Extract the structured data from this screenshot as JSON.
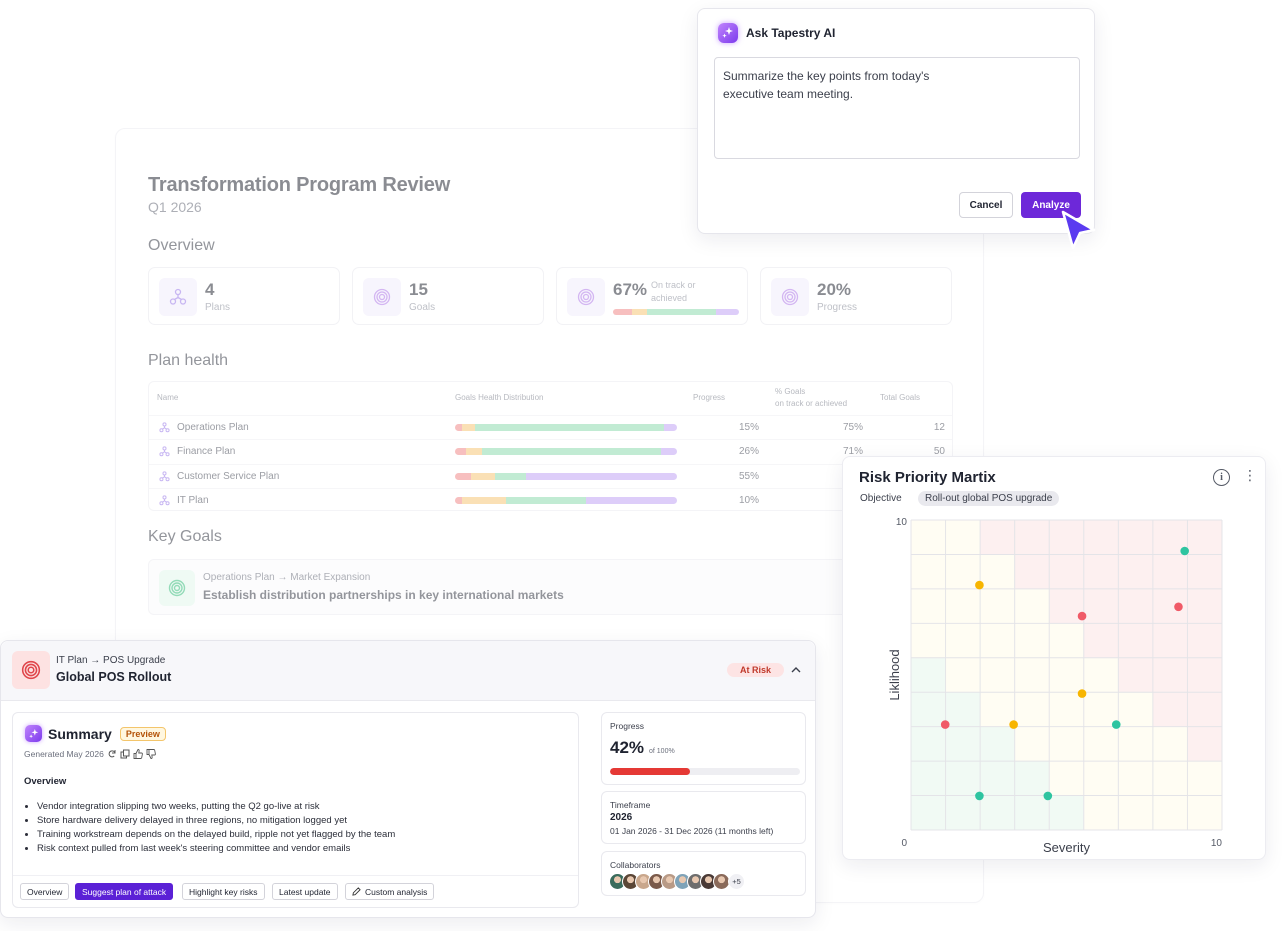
{
  "report": {
    "title": "Transformation Program Review",
    "subtitle": "Q1 2026",
    "overview_heading": "Overview",
    "kpis": [
      {
        "value": "4",
        "label": "Plans",
        "icon": "plans-icon"
      },
      {
        "value": "15",
        "label": "Goals",
        "icon": "target-icon"
      },
      {
        "value": "67%",
        "label": "On track or achieved",
        "icon": "target-icon"
      },
      {
        "value": "20%",
        "label": "Progress",
        "icon": "target-icon"
      }
    ],
    "kpi_distribution": [
      {
        "color": "#f28b8b",
        "value": 0.15
      },
      {
        "color": "#f7c77a",
        "value": 0.12
      },
      {
        "color": "#8fdcb0",
        "value": 0.55
      },
      {
        "color": "#c3a6f5",
        "value": 0.18
      }
    ],
    "plan_health_heading": "Plan health",
    "plan_health_columns": {
      "name": "Name",
      "distribution": "Goals Health Distribution",
      "progress": "Progress",
      "pct_goals": "% Goals",
      "pct_goals_sub": "on track or achieved",
      "total": "Total Goals"
    },
    "plans": [
      {
        "name": "Operations Plan",
        "progress": "15%",
        "pct": "75%",
        "total": "12",
        "dist": [
          0.03,
          0.06,
          0.85,
          0.06
        ]
      },
      {
        "name": "Finance Plan",
        "progress": "26%",
        "pct": "71%",
        "total": "50",
        "dist": [
          0.05,
          0.07,
          0.81,
          0.07
        ]
      },
      {
        "name": "Customer Service Plan",
        "progress": "55%",
        "pct": "",
        "total": "",
        "dist": [
          0.07,
          0.11,
          0.14,
          0.68
        ]
      },
      {
        "name": "IT Plan",
        "progress": "10%",
        "pct": "",
        "total": "",
        "dist": [
          0.03,
          0.2,
          0.36,
          0.41
        ]
      }
    ],
    "health_colors": [
      "#f28b8b",
      "#f7c77a",
      "#8fdcb0",
      "#c3a6f5"
    ],
    "key_goals_heading": "Key Goals",
    "key_goal": {
      "crumb": "Operations Plan → Market Expansion",
      "title": "Establish distribution partnerships in key international markets"
    }
  },
  "ask_ai": {
    "title": "Ask Tapestry AI",
    "prompt": "Summarize the key points from today's\nexecutive team meeting.",
    "cancel_label": "Cancel",
    "analyze_label": "Analyze",
    "accent": "#6d28d9"
  },
  "risk_matrix": {
    "title": "Risk Priority Martix",
    "objective_label": "Objective",
    "objective_value": "Roll-out global POS upgrade"
  },
  "chart_data": {
    "type": "scatter",
    "xlabel": "Severity",
    "ylabel": "Liklihood",
    "xlim": [
      0,
      10
    ],
    "ylim": [
      0,
      10
    ],
    "x_ticks": [
      "0",
      "10"
    ],
    "y_ticks": [
      "10"
    ],
    "grid": true,
    "points": [
      {
        "x": 8.8,
        "y": 9.0,
        "color": "#2ec4a0"
      },
      {
        "x": 2.2,
        "y": 7.9,
        "color": "#f7b500"
      },
      {
        "x": 8.6,
        "y": 7.2,
        "color": "#f05a67"
      },
      {
        "x": 5.5,
        "y": 6.9,
        "color": "#f05a67"
      },
      {
        "x": 5.5,
        "y": 4.4,
        "color": "#f7b500"
      },
      {
        "x": 1.1,
        "y": 3.4,
        "color": "#f05a67"
      },
      {
        "x": 3.3,
        "y": 3.4,
        "color": "#f7b500"
      },
      {
        "x": 6.6,
        "y": 3.4,
        "color": "#2ec4a0"
      },
      {
        "x": 2.2,
        "y": 1.1,
        "color": "#2ec4a0"
      },
      {
        "x": 4.4,
        "y": 1.1,
        "color": "#2ec4a0"
      }
    ]
  },
  "goal_panel": {
    "crumb": "IT Plan → POS Upgrade",
    "title": "Global POS Rollout",
    "status": "At Risk",
    "summary": {
      "title": "Summary",
      "preview_badge": "Preview",
      "generated": "Generated May 2026",
      "overview_heading": "Overview",
      "bullets": [
        "Vendor integration slipping two weeks, putting the Q2 go-live at risk",
        "Store hardware delivery delayed in three regions, no mitigation logged yet",
        "Training workstream depends on the delayed build, ripple not yet flagged by the team",
        "Risk context pulled from last week's steering committee and vendor emails"
      ],
      "actions": [
        "Overview",
        "Suggest plan of attack",
        "Highlight key risks",
        "Latest update",
        "Custom analysis"
      ]
    },
    "progress": {
      "label": "Progress",
      "value": "42%",
      "of": "of 100%",
      "fraction": 0.42
    },
    "timeframe": {
      "label": "Timeframe",
      "year": "2026",
      "range": "01 Jan 2026 - 31 Dec 2026  (11 months left)"
    },
    "collaborators": {
      "label": "Collaborators",
      "more": "+5",
      "avatar_colors": [
        "#3a6b5c",
        "#5b4636",
        "#c9a78c",
        "#7a5a4a",
        "#b89a86",
        "#7fa3b8",
        "#6d6d6d",
        "#4a3a36",
        "#8a6a5a"
      ]
    }
  }
}
